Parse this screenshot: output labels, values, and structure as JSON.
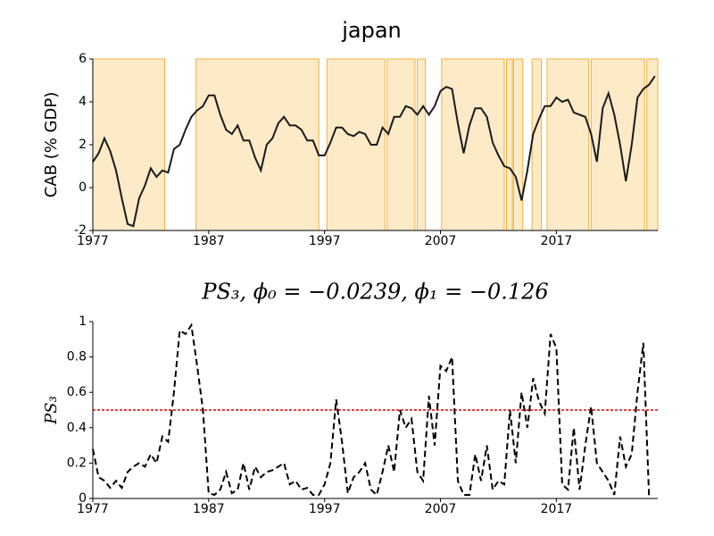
{
  "chart_data": [
    {
      "type": "line",
      "title": "japan",
      "ylabel": "CAB (% GDP)",
      "x": [
        1977,
        1977.5,
        1978,
        1978.5,
        1979,
        1979.5,
        1980,
        1980.5,
        1981,
        1981.5,
        1982,
        1982.5,
        1983,
        1983.5,
        1984,
        1984.5,
        1985,
        1985.5,
        1986,
        1986.5,
        1987,
        1987.5,
        1988,
        1988.5,
        1989,
        1989.5,
        1990,
        1990.5,
        1991,
        1991.5,
        1992,
        1992.5,
        1993,
        1993.5,
        1994,
        1994.5,
        1995,
        1995.5,
        1996,
        1996.5,
        1997,
        1997.5,
        1998,
        1998.5,
        1999,
        1999.5,
        2000,
        2000.5,
        2001,
        2001.5,
        2002,
        2002.5,
        2003,
        2003.5,
        2004,
        2004.5,
        2005,
        2005.5,
        2006,
        2006.5,
        2007,
        2007.5,
        2008,
        2008.5,
        2009,
        2009.5,
        2010,
        2010.5,
        2011,
        2011.5,
        2012,
        2012.5,
        2013,
        2013.5,
        2014,
        2014.5,
        2015,
        2015.5,
        2016,
        2016.5,
        2017,
        2017.5,
        2018,
        2018.5,
        2019,
        2019.5,
        2020,
        2020.5,
        2021,
        2021.5,
        2022,
        2022.5,
        2023,
        2023.5,
        2024,
        2024.5,
        2025,
        2025.5
      ],
      "series": [
        {
          "color": "#1a1a1a",
          "linestyle": "solid",
          "values": [
            1.2,
            1.6,
            2.3,
            1.7,
            0.8,
            -0.5,
            -1.7,
            -1.8,
            -0.5,
            0.1,
            0.9,
            0.5,
            0.8,
            0.7,
            1.8,
            2.0,
            2.7,
            3.3,
            3.6,
            3.8,
            4.3,
            4.3,
            3.4,
            2.7,
            2.5,
            2.9,
            2.2,
            2.2,
            1.4,
            0.8,
            2.0,
            2.3,
            3.0,
            3.3,
            2.9,
            2.9,
            2.7,
            2.2,
            2.2,
            1.5,
            1.5,
            2.1,
            2.8,
            2.8,
            2.5,
            2.4,
            2.6,
            2.5,
            2.0,
            2.0,
            2.8,
            2.5,
            3.3,
            3.3,
            3.8,
            3.7,
            3.4,
            3.8,
            3.4,
            3.8,
            4.5,
            4.7,
            4.6,
            3.0,
            1.6,
            2.9,
            3.7,
            3.7,
            3.3,
            2.1,
            1.5,
            1.0,
            0.9,
            0.5,
            -0.6,
            0.8,
            2.5,
            3.2,
            3.8,
            3.8,
            4.2,
            4.0,
            4.1,
            3.5,
            3.4,
            3.3,
            2.5,
            1.2,
            3.7,
            4.4,
            3.4,
            2.0,
            0.3,
            2.0,
            4.2,
            4.6,
            4.8,
            5.2
          ]
        }
      ],
      "regions": [
        [
          1977,
          1983.2
        ],
        [
          1985.9,
          1996.5
        ],
        [
          1997.2,
          2002.2
        ],
        [
          2002.4,
          2004.8
        ],
        [
          2005,
          2005.7
        ],
        [
          2007.1,
          2012.5
        ],
        [
          2012.7,
          2013.2
        ],
        [
          2013.3,
          2014.1
        ],
        [
          2014.9,
          2015.7
        ],
        [
          2016.2,
          2019.8
        ],
        [
          2020,
          2024.6
        ],
        [
          2024.8,
          2025.75
        ]
      ],
      "region_color": "#fdebc8",
      "region_edge": "#f0b040",
      "xlim": [
        1977,
        2025.75
      ],
      "ylim": [
        -2,
        6
      ],
      "xticks": [
        1977,
        1987,
        1997,
        2007,
        2017
      ],
      "yticks": [
        -2,
        0,
        2,
        4,
        6
      ]
    },
    {
      "type": "line",
      "title": "PS₃, ϕ₀ = −0.0239, ϕ₁ = −0.126",
      "ylabel": "PS₃",
      "x": [
        1977,
        1977.5,
        1978,
        1978.5,
        1979,
        1979.5,
        1980,
        1980.5,
        1981,
        1981.5,
        1982,
        1982.5,
        1983,
        1983.5,
        1984,
        1984.5,
        1985,
        1985.5,
        1986,
        1986.5,
        1987,
        1987.5,
        1988,
        1988.5,
        1989,
        1989.5,
        1990,
        1990.5,
        1991,
        1991.5,
        1992,
        1992.5,
        1993,
        1993.5,
        1994,
        1994.5,
        1995,
        1995.5,
        1996,
        1996.5,
        1997,
        1997.5,
        1998,
        1998.5,
        1999,
        1999.5,
        2000,
        2000.5,
        2001,
        2001.5,
        2002,
        2002.5,
        2003,
        2003.5,
        2004,
        2004.5,
        2005,
        2005.5,
        2006,
        2006.5,
        2007,
        2007.5,
        2008,
        2008.5,
        2009,
        2009.5,
        2010,
        2010.5,
        2011,
        2011.5,
        2012,
        2012.5,
        2013,
        2013.5,
        2014,
        2014.5,
        2015,
        2015.5,
        2016,
        2016.5,
        2017,
        2017.5,
        2018,
        2018.5,
        2019,
        2019.5,
        2020,
        2020.5,
        2021,
        2021.5,
        2022,
        2022.5,
        2023,
        2023.5,
        2024,
        2024.5,
        2025
      ],
      "series": [
        {
          "color": "#000000",
          "linestyle": "dashed",
          "values": [
            0.28,
            0.12,
            0.1,
            0.06,
            0.1,
            0.06,
            0.15,
            0.18,
            0.2,
            0.18,
            0.25,
            0.2,
            0.35,
            0.32,
            0.6,
            0.95,
            0.93,
            0.98,
            0.75,
            0.5,
            0.03,
            0.02,
            0.05,
            0.15,
            0.03,
            0.05,
            0.2,
            0.05,
            0.18,
            0.12,
            0.15,
            0.16,
            0.18,
            0.2,
            0.08,
            0.1,
            0.05,
            0.06,
            0.02,
            0.02,
            0.08,
            0.2,
            0.56,
            0.32,
            0.03,
            0.12,
            0.15,
            0.2,
            0.05,
            0.02,
            0.15,
            0.3,
            0.15,
            0.5,
            0.4,
            0.45,
            0.15,
            0.1,
            0.58,
            0.3,
            0.75,
            0.72,
            0.8,
            0.1,
            0.02,
            0.02,
            0.25,
            0.1,
            0.3,
            0.05,
            0.1,
            0.08,
            0.5,
            0.2,
            0.6,
            0.4,
            0.68,
            0.55,
            0.48,
            0.93,
            0.85,
            0.08,
            0.05,
            0.4,
            0.05,
            0.3,
            0.52,
            0.2,
            0.15,
            0.1,
            0.02,
            0.35,
            0.18,
            0.25,
            0.6,
            0.88,
            0.0
          ]
        }
      ],
      "hline": 0.5,
      "hline_color": "#dd0000",
      "xlim": [
        1977,
        2025.75
      ],
      "ylim": [
        0,
        1
      ],
      "xticks": [
        1977,
        1987,
        1997,
        2007,
        2017
      ],
      "yticks": [
        0,
        0.2,
        0.4,
        0.6,
        0.8,
        1
      ]
    }
  ]
}
